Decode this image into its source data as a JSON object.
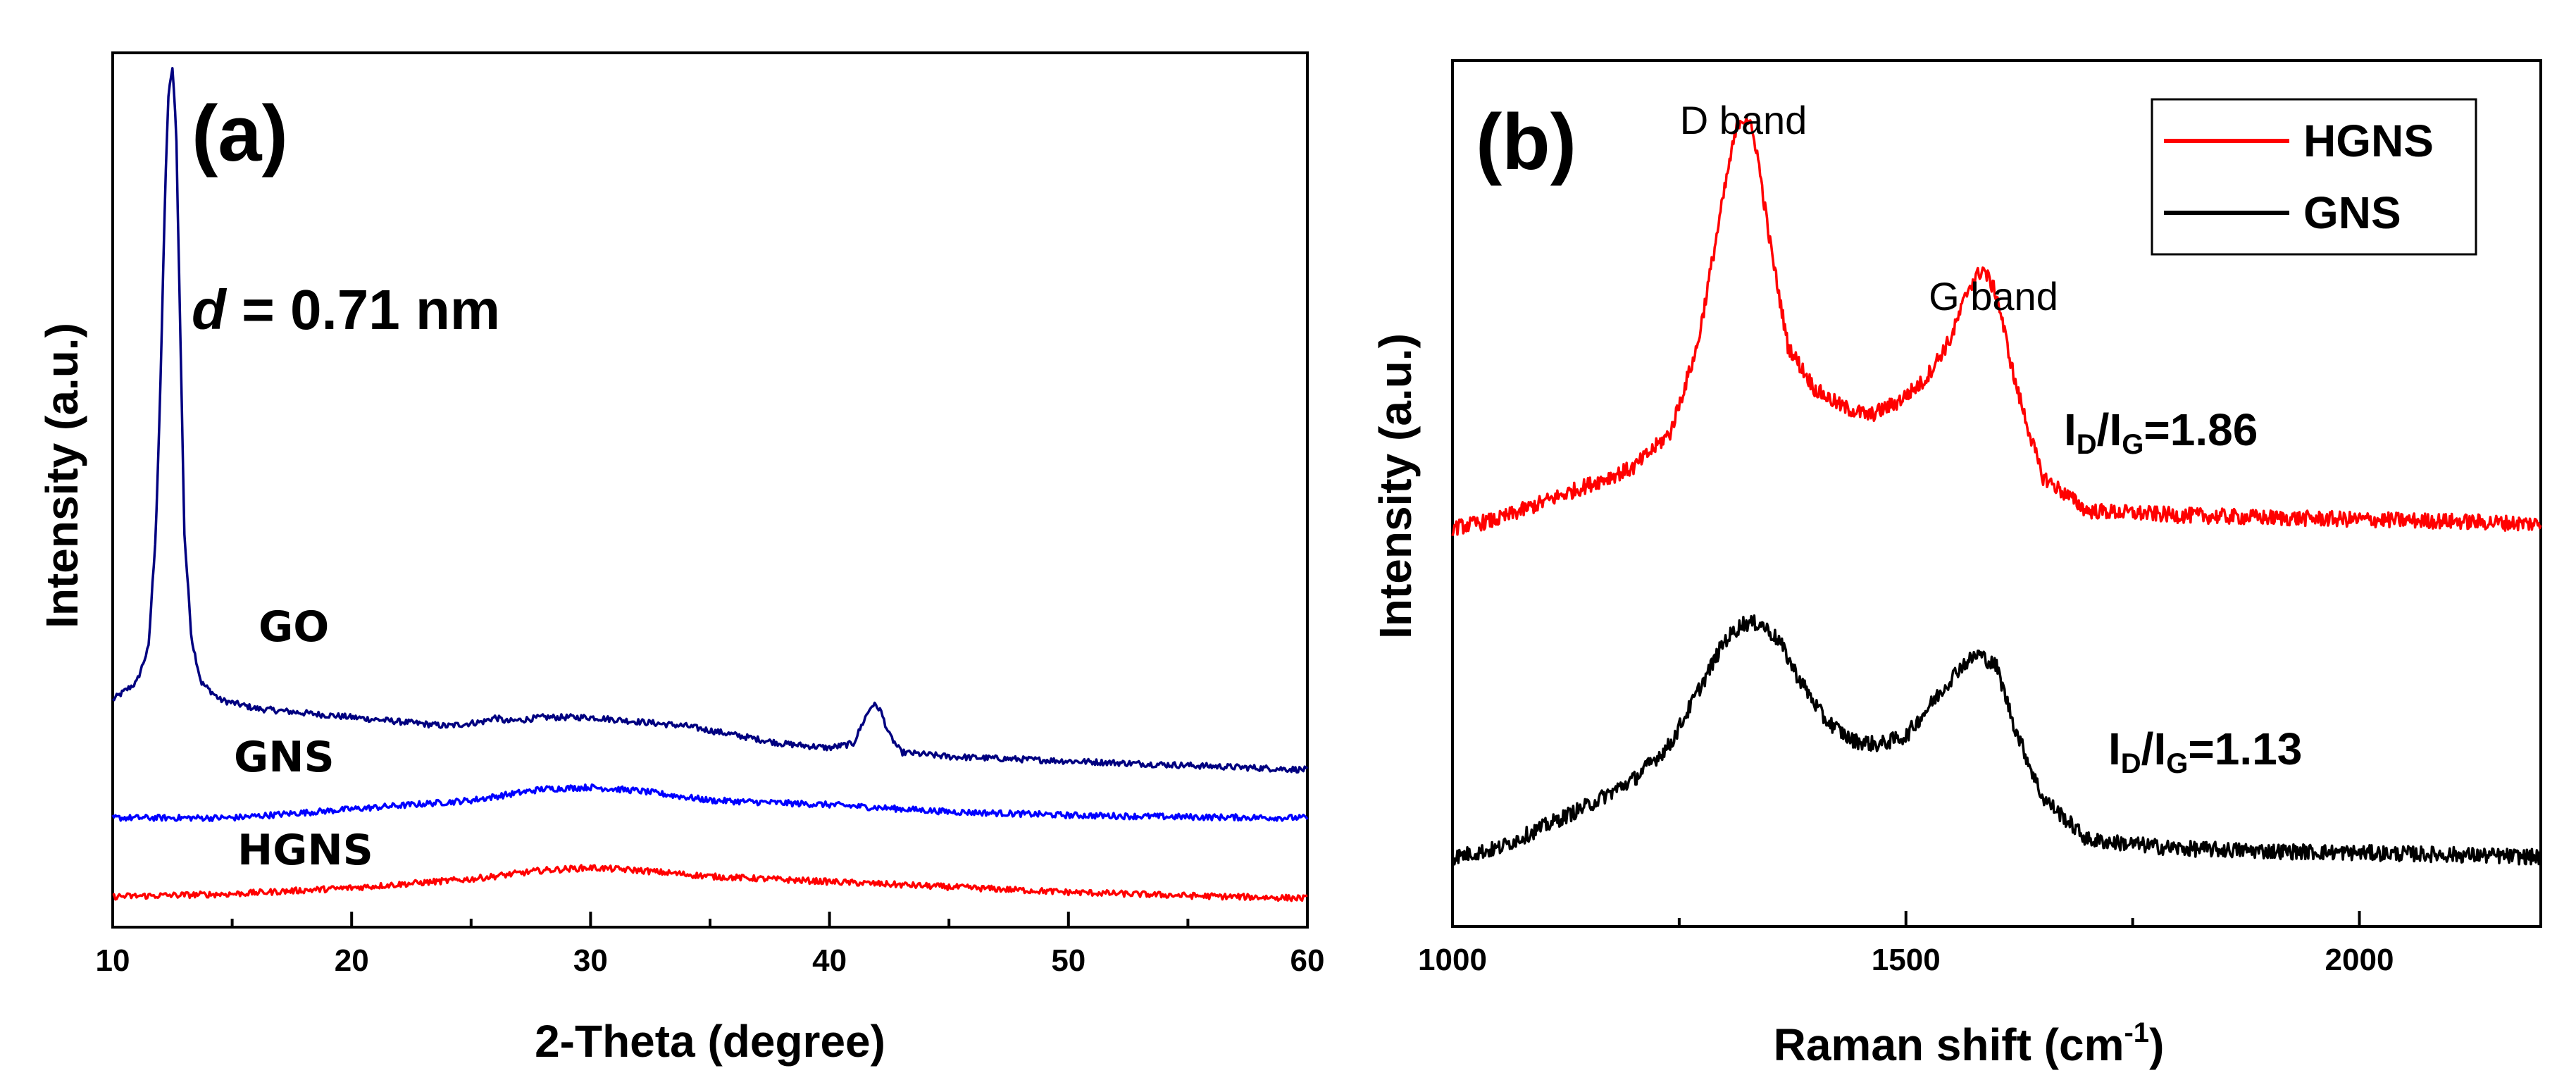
{
  "chart_data": [
    {
      "type": "line",
      "panel_label": "(a)",
      "xlabel": "2-Theta (degree)",
      "ylabel": "Intensity (a.u.)",
      "xlim": [
        10,
        60
      ],
      "ylim": [
        0,
        100
      ],
      "xticks": [
        "10",
        "20",
        "30",
        "40",
        "50",
        "60"
      ],
      "annotation": {
        "italic": "d",
        "rest": " = 0.71 nm"
      },
      "series": [
        {
          "name": "GO",
          "color": "#000080",
          "points": [
            [
              10,
              26
            ],
            [
              11,
              28
            ],
            [
              11.5,
              32
            ],
            [
              11.8,
              45
            ],
            [
              12,
              62
            ],
            [
              12.2,
              85
            ],
            [
              12.35,
              96
            ],
            [
              12.5,
              98
            ],
            [
              12.65,
              92
            ],
            [
              12.8,
              72
            ],
            [
              13,
              45
            ],
            [
              13.3,
              33
            ],
            [
              13.7,
              28
            ],
            [
              14.5,
              26
            ],
            [
              16,
              25
            ],
            [
              18,
              24.5
            ],
            [
              20,
              24
            ],
            [
              22,
              23.5
            ],
            [
              24,
              23
            ],
            [
              25.5,
              23.5
            ],
            [
              26,
              24
            ],
            [
              26.5,
              23.5
            ],
            [
              28,
              24
            ],
            [
              30,
              24
            ],
            [
              32,
              23.5
            ],
            [
              34,
              23
            ],
            [
              36,
              22
            ],
            [
              38,
              21
            ],
            [
              40,
              20.5
            ],
            [
              41,
              21
            ],
            [
              41.5,
              24
            ],
            [
              41.8,
              25.5
            ],
            [
              42.1,
              25
            ],
            [
              42.5,
              22
            ],
            [
              43,
              20
            ],
            [
              45,
              19.5
            ],
            [
              50,
              19
            ],
            [
              55,
              18.5
            ],
            [
              60,
              18
            ]
          ]
        },
        {
          "name": "GNS",
          "color": "#0000ff",
          "points": [
            [
              10,
              12.5
            ],
            [
              15,
              12.5
            ],
            [
              20,
              13.5
            ],
            [
              25,
              14.5
            ],
            [
              28,
              15.8
            ],
            [
              30,
              16
            ],
            [
              32,
              15.6
            ],
            [
              35,
              14.5
            ],
            [
              40,
              14
            ],
            [
              45,
              13.2
            ],
            [
              50,
              12.8
            ],
            [
              55,
              12.6
            ],
            [
              60,
              12.5
            ]
          ]
        },
        {
          "name": "HGNS",
          "color": "#ff0000",
          "points": [
            [
              10,
              3.5
            ],
            [
              15,
              3.8
            ],
            [
              20,
              4.5
            ],
            [
              25,
              5.5
            ],
            [
              28,
              6.5
            ],
            [
              30,
              6.8
            ],
            [
              32,
              6.5
            ],
            [
              35,
              5.8
            ],
            [
              40,
              5.2
            ],
            [
              45,
              4.6
            ],
            [
              50,
              4
            ],
            [
              55,
              3.6
            ],
            [
              60,
              3.3
            ]
          ]
        }
      ]
    },
    {
      "type": "line",
      "panel_label": "(b)",
      "xlabel": "Raman shift (cm",
      "xlabel_sup": "-1",
      "xlabel_end": ")",
      "ylabel": "Intensity (a.u.)",
      "xlim": [
        1000,
        2200
      ],
      "ylim": [
        0,
        100
      ],
      "xticks": [
        "1000",
        "1500",
        "2000"
      ],
      "legend": {
        "position": "top-right",
        "entries": [
          "HGNS",
          "GNS"
        ]
      },
      "band_labels": [
        "D band",
        "G band"
      ],
      "ratios": [
        {
          "I": "I",
          "D": "D",
          "slash": "/I",
          "G": "G",
          "value": "=1.86"
        },
        {
          "I": "I",
          "D": "D",
          "slash": "/I",
          "G": "G",
          "value": "=1.13"
        }
      ],
      "series": [
        {
          "name": "HGNS",
          "color": "#ff0000",
          "points": [
            [
              1000,
              46
            ],
            [
              1050,
              47
            ],
            [
              1100,
              49
            ],
            [
              1150,
              51
            ],
            [
              1200,
              53
            ],
            [
              1240,
              57
            ],
            [
              1270,
              67
            ],
            [
              1290,
              79
            ],
            [
              1305,
              88
            ],
            [
              1315,
              93
            ],
            [
              1325,
              93.5
            ],
            [
              1335,
              90
            ],
            [
              1350,
              79
            ],
            [
              1370,
              67
            ],
            [
              1400,
              62
            ],
            [
              1430,
              60
            ],
            [
              1460,
              59
            ],
            [
              1490,
              60.5
            ],
            [
              1520,
              63
            ],
            [
              1550,
              68
            ],
            [
              1570,
              74
            ],
            [
              1585,
              76
            ],
            [
              1600,
              73
            ],
            [
              1620,
              63
            ],
            [
              1650,
              52
            ],
            [
              1700,
              48
            ],
            [
              1800,
              47.5
            ],
            [
              1900,
              47.2
            ],
            [
              2000,
              47
            ],
            [
              2100,
              46.8
            ],
            [
              2200,
              46.5
            ]
          ]
        },
        {
          "name": "GNS",
          "color": "#000000",
          "points": [
            [
              1000,
              8
            ],
            [
              1050,
              9
            ],
            [
              1100,
              11.5
            ],
            [
              1150,
              14
            ],
            [
              1200,
              17
            ],
            [
              1240,
              21
            ],
            [
              1270,
              27
            ],
            [
              1300,
              33
            ],
            [
              1320,
              35
            ],
            [
              1340,
              35
            ],
            [
              1360,
              33
            ],
            [
              1380,
              29
            ],
            [
              1410,
              24
            ],
            [
              1440,
              21.5
            ],
            [
              1470,
              21
            ],
            [
              1500,
              22
            ],
            [
              1530,
              26
            ],
            [
              1560,
              30
            ],
            [
              1580,
              31.5
            ],
            [
              1600,
              30
            ],
            [
              1620,
              23
            ],
            [
              1650,
              15
            ],
            [
              1700,
              10
            ],
            [
              1800,
              9
            ],
            [
              1900,
              8.7
            ],
            [
              2000,
              8.5
            ],
            [
              2100,
              8.3
            ],
            [
              2200,
              8
            ]
          ]
        }
      ]
    }
  ],
  "labels": {
    "go": "GO",
    "gns": "GNS",
    "hgns": "HGNS"
  }
}
